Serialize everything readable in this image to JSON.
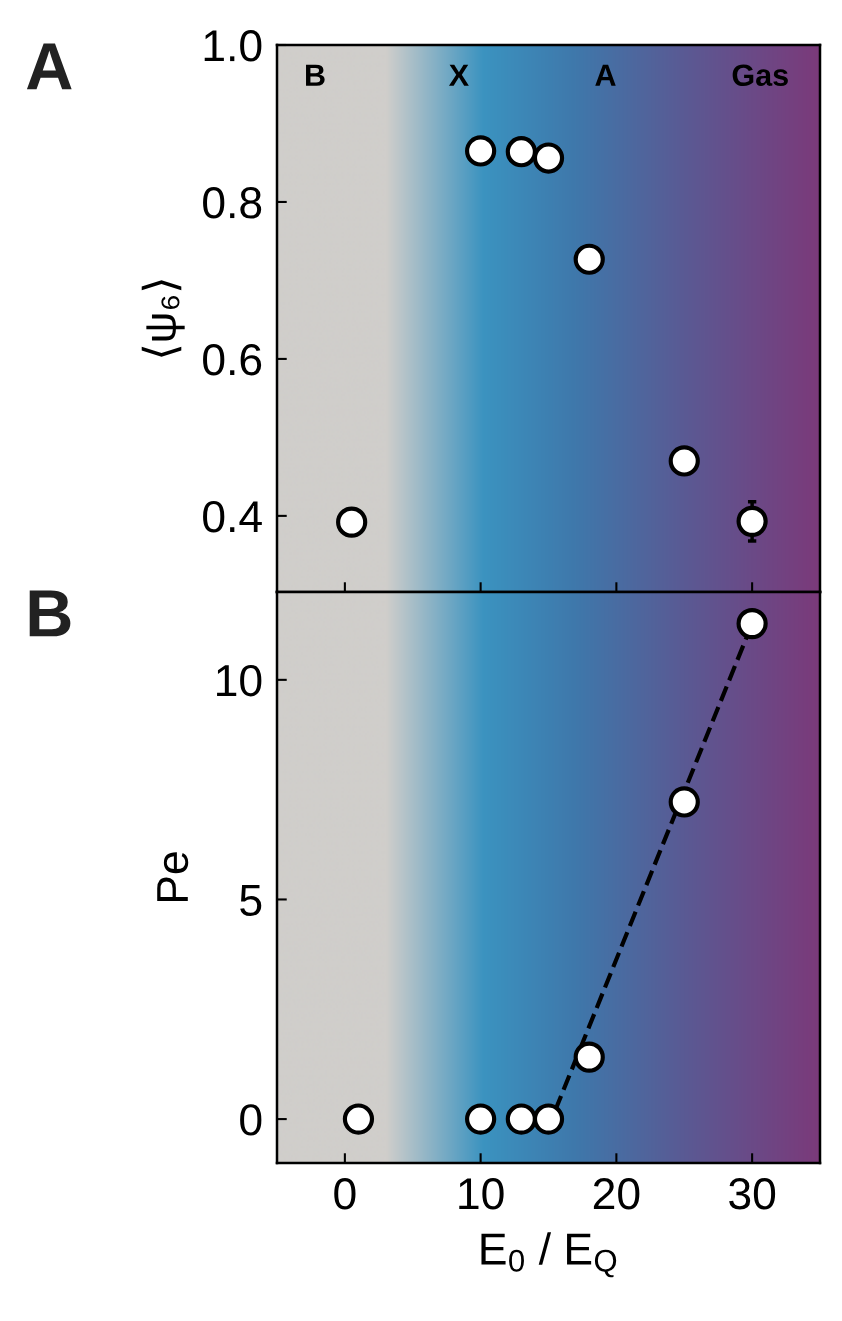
{
  "chart_data": [
    {
      "type": "scatter",
      "ylabel": "⟨ψ₆⟩",
      "annotations": [
        "A",
        "B",
        "X",
        "A",
        "Gas"
      ],
      "x": [
        0.5,
        10,
        13,
        15,
        18,
        25,
        30
      ],
      "series": [
        {
          "color": "#ffffff",
          "values": [
            0.392,
            0.865,
            0.864,
            0.856,
            0.727,
            0.47,
            0.393
          ],
          "errors": [
            null,
            null,
            null,
            null,
            null,
            null,
            0.025
          ]
        }
      ],
      "xlim": [
        -5,
        35
      ],
      "xticks": [
        0,
        10,
        20,
        30
      ],
      "ylim": [
        0.303,
        1.0
      ],
      "yticks": [
        0.4,
        0.6,
        0.8,
        {
          "value": 1,
          "label": "1.0"
        }
      ],
      "tick_labels": "y",
      "marker": "circle",
      "grid": false,
      "legend": false
    },
    {
      "type": "scatter",
      "ylabel": "Pe",
      "xlabel": "E$_{0}$ / E$_{Q}$",
      "annotations": [
        "B"
      ],
      "x": [
        1.0,
        10,
        13,
        15,
        18,
        25,
        30
      ],
      "series": [
        {
          "type": "line",
          "color": "#000000",
          "x": [
            15.5,
            30
          ],
          "values": [
            0.2,
            11.28
          ],
          "line_style": "dashed",
          "marker": "none"
        },
        {
          "color": "#ffffff",
          "values": [
            0,
            0,
            0,
            0,
            1.41,
            7.22,
            11.28
          ]
        }
      ],
      "xlim": [
        -5,
        35
      ],
      "xticks": [
        0,
        10,
        20,
        30
      ],
      "ylim": [
        -1,
        12
      ],
      "yticks": [
        0,
        5,
        10
      ],
      "marker": "circle",
      "grid": false,
      "legend": false
    }
  ]
}
